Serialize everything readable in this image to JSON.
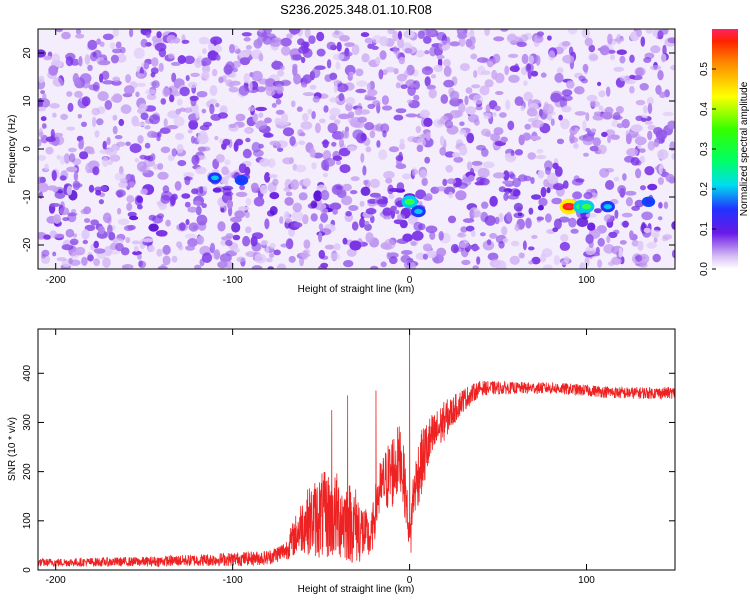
{
  "title": "S236.2025.348.01.10.R08",
  "chart_data": [
    {
      "type": "heatmap",
      "title": "S236.2025.348.01.10.R08",
      "xlabel": "Height of straight line (km)",
      "ylabel": "Frequency (Hz)",
      "xlim": [
        -210,
        150
      ],
      "ylim": [
        -25,
        25
      ],
      "xticks": [
        -200,
        -100,
        0,
        100
      ],
      "yticks": [
        -20,
        -10,
        0,
        10,
        20
      ],
      "colorbar": {
        "label": "Normalized spectral amplitude",
        "range": [
          0,
          0.6
        ],
        "ticks": [
          0.0,
          0.1,
          0.2,
          0.3,
          0.4,
          0.5
        ]
      },
      "hotspots": [
        {
          "x": -110,
          "y": -6,
          "value": 0.15
        },
        {
          "x": -95,
          "y": -6.5,
          "value": 0.12
        },
        {
          "x": 0,
          "y": -11,
          "value": 0.35
        },
        {
          "x": 5,
          "y": -13,
          "value": 0.22
        },
        {
          "x": 90,
          "y": -12,
          "value": 0.55
        },
        {
          "x": 97,
          "y": -12,
          "value": 0.35
        },
        {
          "x": 100,
          "y": -12,
          "value": 0.3
        },
        {
          "x": 112,
          "y": -12,
          "value": 0.2
        },
        {
          "x": 135,
          "y": -11,
          "value": 0.12
        }
      ]
    },
    {
      "type": "line",
      "xlabel": "Height of straight line (km)",
      "ylabel": "SNR (10 * v/v)",
      "xlim": [
        -210,
        150
      ],
      "ylim": [
        0,
        490
      ],
      "xticks": [
        -200,
        -100,
        0,
        100
      ],
      "yticks": [
        0,
        100,
        200,
        300,
        400
      ],
      "color": "#ee2222",
      "envelope": {
        "x": [
          -210,
          -150,
          -100,
          -80,
          -70,
          -60,
          -50,
          -40,
          -30,
          -22,
          -18,
          -15,
          -10,
          -5,
          -2,
          0,
          2,
          5,
          10,
          15,
          20,
          25,
          30,
          40,
          60,
          80,
          100,
          120,
          150
        ],
        "mean": [
          15,
          17,
          22,
          25,
          40,
          95,
          110,
          110,
          90,
          60,
          150,
          175,
          200,
          230,
          150,
          60,
          150,
          200,
          250,
          280,
          305,
          325,
          345,
          370,
          370,
          370,
          365,
          360,
          360
        ],
        "spread": [
          8,
          10,
          14,
          15,
          20,
          60,
          90,
          90,
          80,
          40,
          60,
          60,
          80,
          70,
          60,
          20,
          50,
          70,
          60,
          45,
          40,
          30,
          25,
          15,
          12,
          12,
          12,
          12,
          12
        ]
      },
      "spikes": [
        {
          "x": 0,
          "y": 490
        },
        {
          "x": 0.8,
          "y": 35
        },
        {
          "x": -19,
          "y": 365
        },
        {
          "x": -35,
          "y": 355
        },
        {
          "x": -44,
          "y": 325
        }
      ]
    }
  ]
}
